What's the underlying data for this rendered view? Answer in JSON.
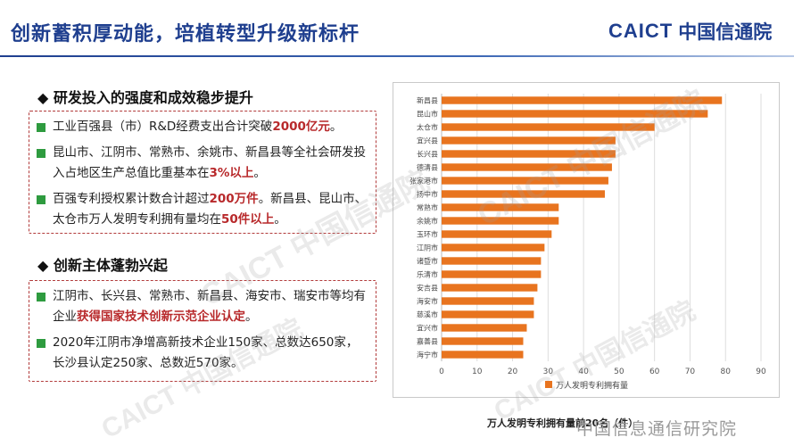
{
  "header": {
    "title": "创新蓄积厚动能，培植转型升级新标杆",
    "logo_en": "CAICT",
    "logo_cn": "中国信通院"
  },
  "section1": {
    "heading": "◆ 研发投入的强度和成效稳步提升",
    "items": [
      {
        "pre": "工业百强县（市）R&D经费支出合计突破",
        "hl": "2000亿元",
        "post": "。"
      },
      {
        "pre": "昆山市、江阴市、常熟市、余姚市、新昌县等全社会研发投入占地区生产总值比重基本在",
        "hl": "3%以上",
        "post": "。"
      },
      {
        "pre": "百强专利授权累计数合计超过",
        "hl": "200万件",
        "post": "。新昌县、昆山市、太仓市万人发明专利拥有量均在",
        "hl2": "50件以上",
        "post2": "。"
      }
    ]
  },
  "section2": {
    "heading": "◆ 创新主体蓬勃兴起",
    "items": [
      {
        "pre": "江阴市、长兴县、常熟市、新昌县、海安市、瑞安市等均有企业",
        "hl": "获得国家技术创新示范企业认定",
        "post": "。"
      },
      {
        "pre": "2020年江阴市净增高新技术企业150家、总数达650家，长沙县认定250家、总数近570家。",
        "hl": "",
        "post": ""
      }
    ]
  },
  "chart_data": {
    "type": "bar",
    "orientation": "horizontal",
    "categories": [
      "新昌县",
      "昆山市",
      "太仓市",
      "宜兴县",
      "长兴县",
      "德清县",
      "张家港市",
      "扬中市",
      "常熟市",
      "余姚市",
      "玉环市",
      "江阴市",
      "诸暨市",
      "乐清市",
      "安吉县",
      "海安市",
      "慈溪市",
      "宜兴市",
      "嘉善县",
      "海宁市"
    ],
    "values": [
      79,
      75,
      60,
      49,
      49,
      48,
      47,
      46,
      33,
      33,
      31,
      29,
      28,
      28,
      27,
      26,
      26,
      24,
      23,
      23
    ],
    "xlim": [
      0,
      90
    ],
    "xticks": [
      0,
      10,
      20,
      30,
      40,
      50,
      60,
      70,
      80,
      90
    ],
    "legend": "万人发明专利拥有量",
    "legend_position": "bottom",
    "title": "万人发明专利拥有量前20名（件）",
    "bar_color": "#e8741f",
    "grid": true
  },
  "watermark": {
    "text": "CAICT 中国信通院",
    "footer": "中国信息通信研究院"
  },
  "colors": {
    "title": "#1f3f8f",
    "highlight": "#b8292b",
    "bullet": "#2e9b3f",
    "bar": "#e8741f"
  }
}
